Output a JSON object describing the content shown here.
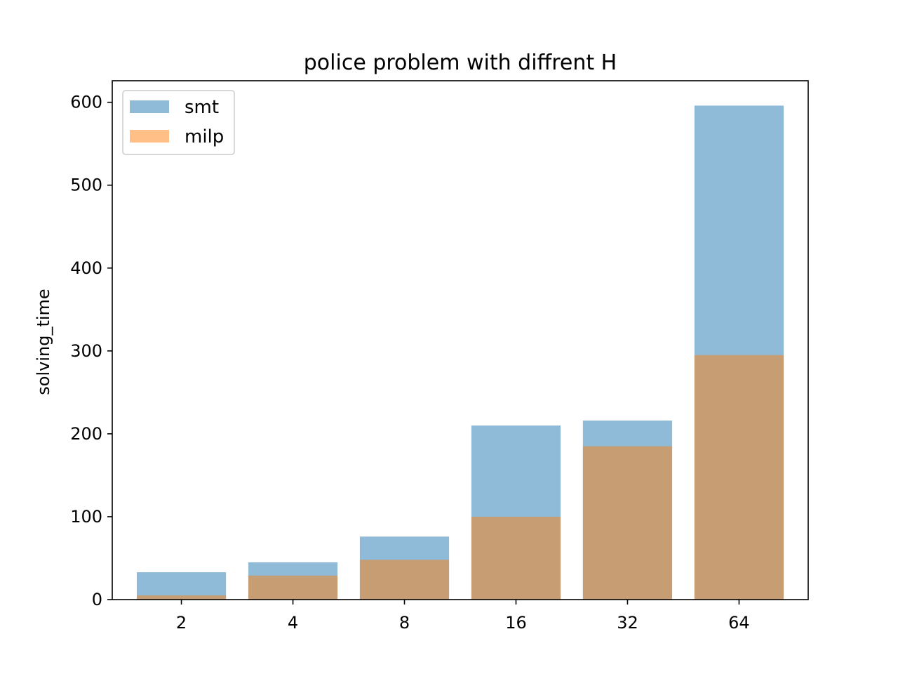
{
  "chart_data": {
    "type": "bar",
    "title": "police problem with diffrent H",
    "xlabel": "",
    "ylabel": "solving_time",
    "categories": [
      "2",
      "4",
      "8",
      "16",
      "32",
      "64"
    ],
    "series": [
      {
        "name": "smt",
        "values": [
          33,
          45,
          76,
          210,
          216,
          596
        ],
        "color": "#1f77b4",
        "alpha": 0.5
      },
      {
        "name": "milp",
        "values": [
          5,
          29,
          48,
          100,
          185,
          295
        ],
        "color": "#ff7f0e",
        "alpha": 0.5
      }
    ],
    "overlay": true,
    "ylim": [
      0,
      626
    ],
    "yticks": [
      0,
      100,
      200,
      300,
      400,
      500,
      600
    ],
    "grid": false,
    "legend_position": "upper-left"
  }
}
